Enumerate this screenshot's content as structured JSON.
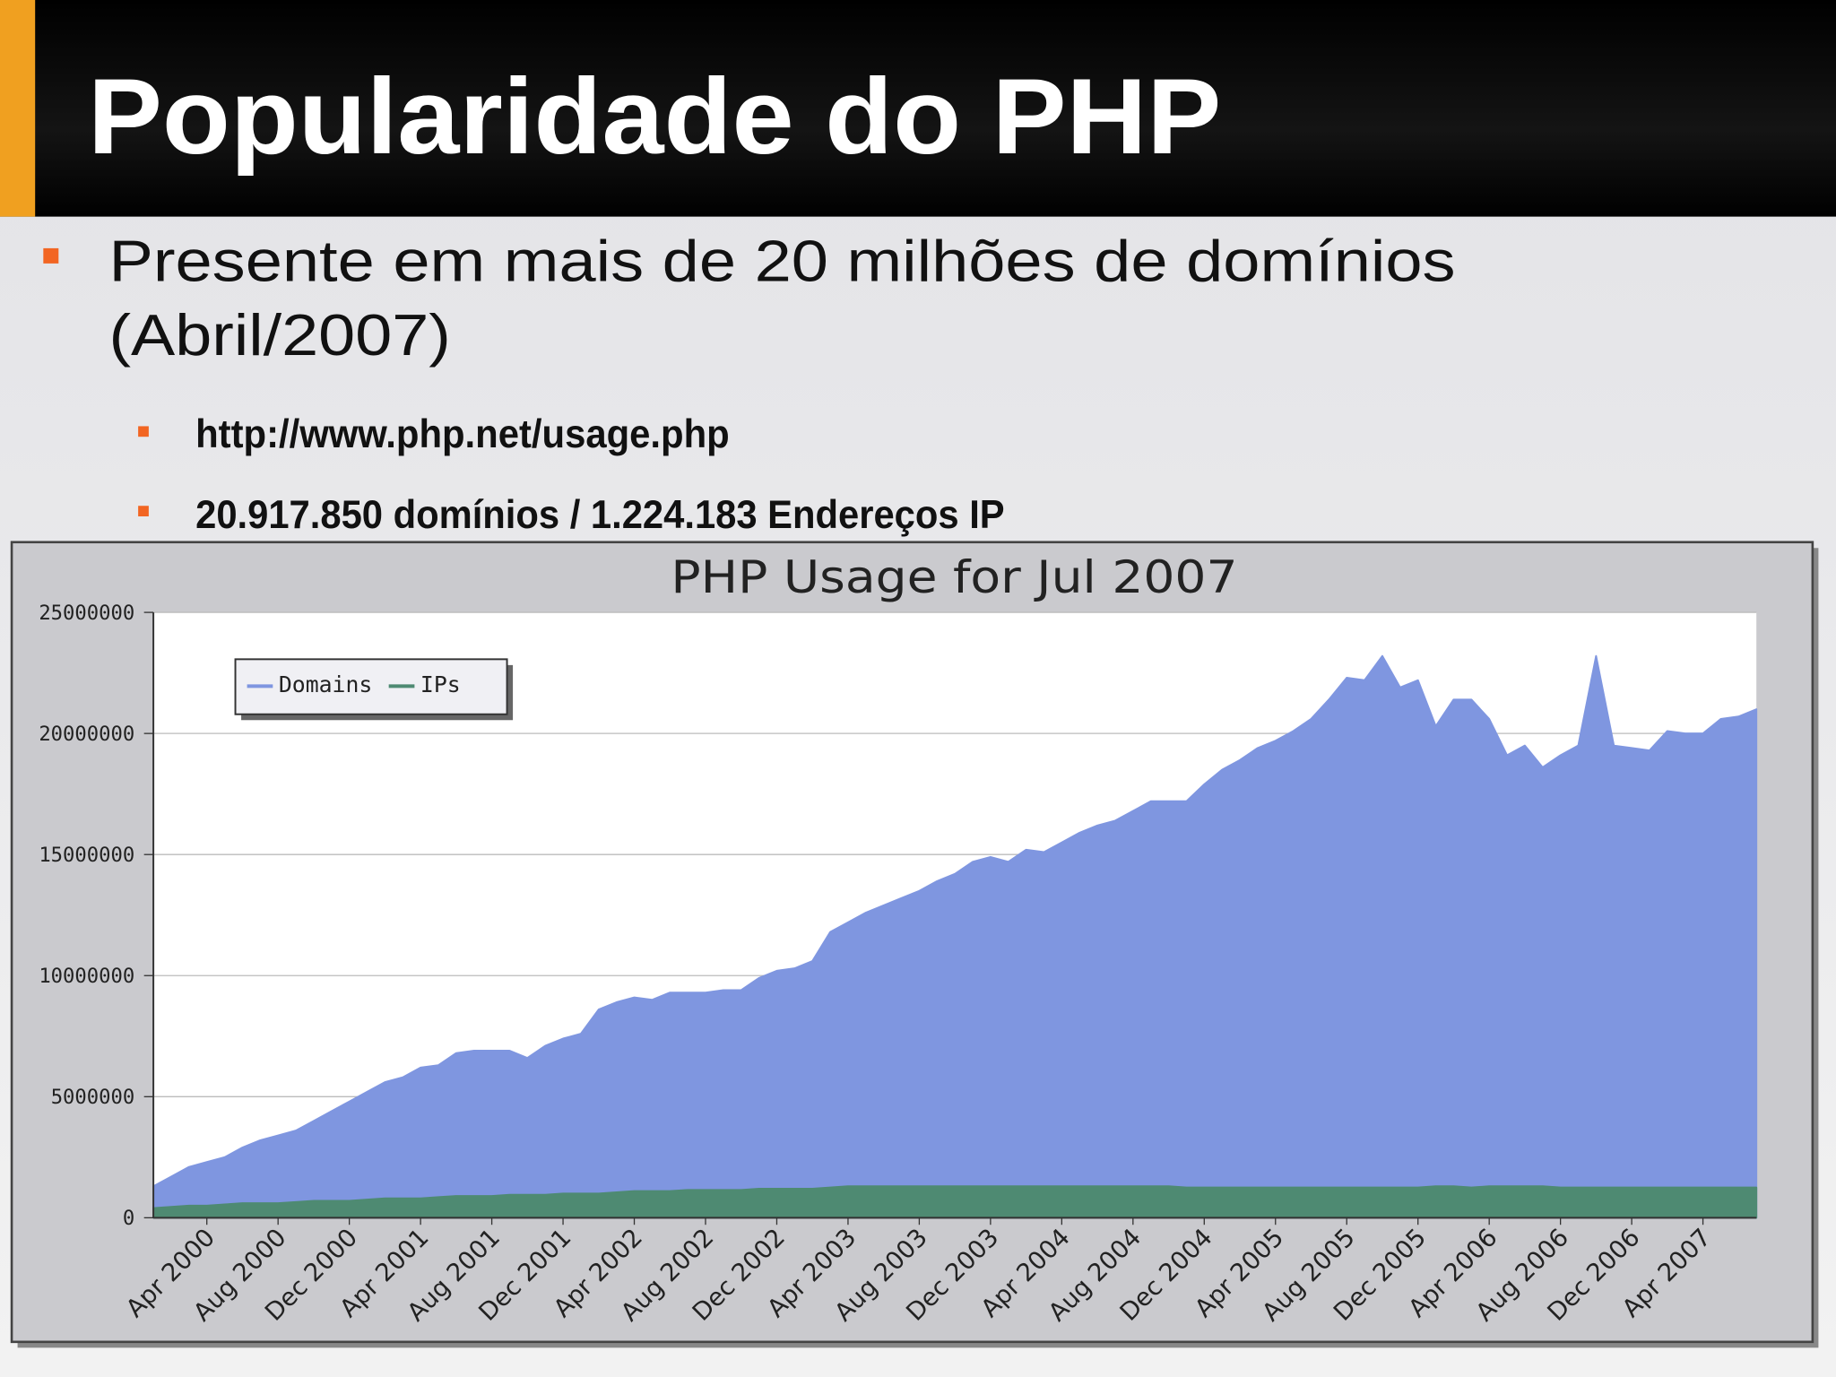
{
  "header": {
    "title": "Popularidade do PHP"
  },
  "bullets": [
    {
      "lines": [
        "Presente em mais de 20 milhões de domínios",
        "(Abril/2007)"
      ],
      "subbullets": [
        "http://www.php.net/usage.php",
        "20.917.850 domínios / 1.224.183 Endereços IP"
      ]
    }
  ],
  "chart_data": {
    "type": "area",
    "title": "PHP Usage for Jul 2007",
    "categories": [
      null,
      null,
      null,
      "Apr 2000",
      null,
      null,
      null,
      "Aug 2000",
      null,
      null,
      null,
      "Dec 2000",
      null,
      null,
      null,
      "Apr 2001",
      null,
      null,
      null,
      "Aug 2001",
      null,
      null,
      null,
      "Dec 2001",
      null,
      null,
      null,
      "Apr 2002",
      null,
      null,
      null,
      "Aug 2002",
      null,
      null,
      null,
      "Dec 2002",
      null,
      null,
      null,
      "Apr 2003",
      null,
      null,
      null,
      "Aug 2003",
      null,
      null,
      null,
      "Dec 2003",
      null,
      null,
      null,
      "Apr 2004",
      null,
      null,
      null,
      "Aug 2004",
      null,
      null,
      null,
      "Dec 2004",
      null,
      null,
      null,
      "Apr 2005",
      null,
      null,
      null,
      "Aug 2005",
      null,
      null,
      null,
      "Dec 2005",
      null,
      null,
      null,
      "Apr 2006",
      null,
      null,
      null,
      "Aug 2006",
      null,
      null,
      null,
      "Dec 2006",
      null,
      null,
      null,
      "Apr 2007",
      null,
      null,
      null
    ],
    "series": [
      {
        "name": "Domains",
        "color": "#7f96e0",
        "values": [
          1300000,
          1700000,
          2100000,
          2300000,
          2500000,
          2900000,
          3200000,
          3400000,
          3600000,
          4000000,
          4400000,
          4800000,
          5200000,
          5600000,
          5800000,
          6200000,
          6300000,
          6800000,
          6900000,
          6900000,
          6900000,
          6600000,
          7100000,
          7400000,
          7600000,
          8600000,
          8900000,
          9100000,
          9000000,
          9300000,
          9300000,
          9300000,
          9400000,
          9400000,
          9900000,
          10200000,
          10300000,
          10600000,
          11800000,
          12200000,
          12600000,
          12900000,
          13200000,
          13500000,
          13900000,
          14200000,
          14700000,
          14900000,
          14700000,
          15200000,
          15100000,
          15500000,
          15900000,
          16200000,
          16400000,
          16800000,
          17200000,
          17200000,
          17200000,
          17900000,
          18500000,
          18900000,
          19400000,
          19700000,
          20100000,
          20600000,
          21400000,
          22300000,
          22200000,
          23200000,
          21900000,
          22200000,
          20300000,
          21400000,
          21400000,
          20600000,
          19100000,
          19500000,
          18600000,
          19100000,
          19500000,
          23200000,
          19500000,
          19400000,
          19300000,
          20100000,
          20000000,
          20000000,
          20600000,
          20700000,
          21000000
        ]
      },
      {
        "name": "IPs",
        "color": "#4e8a72",
        "values": [
          400000,
          450000,
          500000,
          500000,
          550000,
          600000,
          600000,
          600000,
          650000,
          700000,
          700000,
          700000,
          750000,
          800000,
          800000,
          800000,
          850000,
          900000,
          900000,
          900000,
          950000,
          950000,
          950000,
          1000000,
          1000000,
          1000000,
          1050000,
          1100000,
          1100000,
          1100000,
          1150000,
          1150000,
          1150000,
          1150000,
          1200000,
          1200000,
          1200000,
          1200000,
          1250000,
          1300000,
          1300000,
          1300000,
          1300000,
          1300000,
          1300000,
          1300000,
          1300000,
          1300000,
          1300000,
          1300000,
          1300000,
          1300000,
          1300000,
          1300000,
          1300000,
          1300000,
          1300000,
          1300000,
          1250000,
          1250000,
          1250000,
          1250000,
          1250000,
          1250000,
          1250000,
          1250000,
          1250000,
          1250000,
          1250000,
          1250000,
          1250000,
          1250000,
          1300000,
          1300000,
          1250000,
          1300000,
          1300000,
          1300000,
          1300000,
          1250000,
          1250000,
          1250000,
          1250000,
          1250000,
          1250000,
          1250000,
          1250000,
          1250000,
          1250000,
          1250000,
          1250000
        ]
      }
    ],
    "ylim": [
      0,
      25000000
    ],
    "yticks": [
      0,
      5000000,
      10000000,
      15000000,
      20000000,
      25000000
    ],
    "grid": true,
    "legend": "upper left"
  }
}
